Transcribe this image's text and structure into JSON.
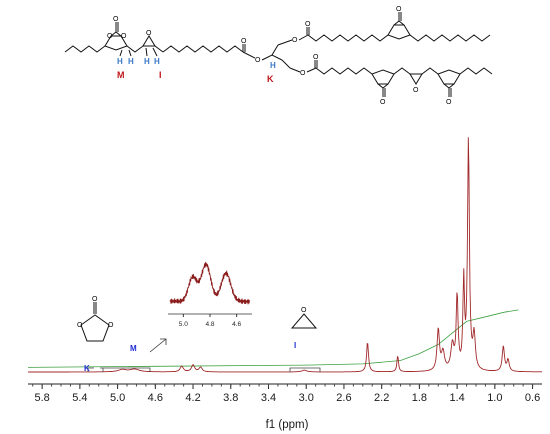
{
  "chart_data": {
    "type": "line",
    "title": "",
    "xlabel": "f1 (ppm)",
    "ylabel": "",
    "x_reversed": true,
    "xlim": [
      0.5,
      5.95
    ],
    "ticks": [
      "5.8",
      "5.4",
      "5.0",
      "4.6",
      "4.2",
      "3.8",
      "3.4",
      "3.0",
      "2.6",
      "2.2",
      "1.8",
      "1.4",
      "1.0",
      "0.6"
    ],
    "tick_values": [
      5.8,
      5.4,
      5.0,
      4.6,
      4.2,
      3.8,
      3.4,
      3.0,
      2.6,
      2.2,
      1.8,
      1.4,
      1.0,
      0.6
    ],
    "series": [
      {
        "kind": "spectrum",
        "color": "#a0282a",
        "baseline": 0.02,
        "peaks": [
          {
            "ppm": 4.82,
            "intensity": 0.012,
            "width": 0.06
          },
          {
            "ppm": 4.95,
            "intensity": 0.01,
            "width": 0.05
          },
          {
            "ppm": 4.32,
            "intensity": 0.025,
            "width": 0.02
          },
          {
            "ppm": 4.2,
            "intensity": 0.03,
            "width": 0.02
          },
          {
            "ppm": 4.12,
            "intensity": 0.02,
            "width": 0.02
          },
          {
            "ppm": 3.02,
            "intensity": 0.008,
            "width": 0.03
          },
          {
            "ppm": 2.35,
            "intensity": 0.13,
            "width": 0.012
          },
          {
            "ppm": 2.03,
            "intensity": 0.07,
            "width": 0.01
          },
          {
            "ppm": 1.6,
            "intensity": 0.18,
            "width": 0.015
          },
          {
            "ppm": 1.55,
            "intensity": 0.08,
            "width": 0.02
          },
          {
            "ppm": 1.45,
            "intensity": 0.11,
            "width": 0.02
          },
          {
            "ppm": 1.4,
            "intensity": 0.32,
            "width": 0.012
          },
          {
            "ppm": 1.33,
            "intensity": 0.38,
            "width": 0.01
          },
          {
            "ppm": 1.28,
            "intensity": 1.0,
            "width": 0.012
          },
          {
            "ppm": 1.22,
            "intensity": 0.15,
            "width": 0.015
          },
          {
            "ppm": 0.91,
            "intensity": 0.11,
            "width": 0.014
          },
          {
            "ppm": 0.86,
            "intensity": 0.05,
            "width": 0.014
          }
        ]
      },
      {
        "kind": "integral",
        "color": "#3aa040",
        "points": [
          [
            5.95,
            0.02
          ],
          [
            4.6,
            0.025
          ],
          [
            3.0,
            0.03
          ],
          [
            2.4,
            0.035
          ],
          [
            2.0,
            0.05
          ],
          [
            1.8,
            0.08
          ],
          [
            1.6,
            0.12
          ],
          [
            1.45,
            0.17
          ],
          [
            1.3,
            0.22
          ],
          [
            1.1,
            0.24
          ],
          [
            0.9,
            0.26
          ],
          [
            0.75,
            0.27
          ]
        ]
      }
    ],
    "inset": {
      "tick_labels": [
        "5.0",
        "4.8",
        "4.6"
      ],
      "tick_values": [
        5.0,
        4.8,
        4.6
      ],
      "xlim": [
        5.1,
        4.5
      ]
    },
    "annotations": [
      "K",
      "M",
      "I"
    ]
  },
  "molecule": {
    "labels": {
      "M": "M",
      "I": "I",
      "K": "K"
    },
    "atoms": {
      "O": "O",
      "H": "H"
    }
  },
  "spectrum_labels": {
    "K": "K",
    "M": "M",
    "I": "I"
  },
  "colors": {
    "spectrum": "#a0282a",
    "integral": "#3aa040",
    "label_blue": "#1f2fd6",
    "label_red": "#c0161a",
    "hydrogen": "#3a78c8"
  }
}
